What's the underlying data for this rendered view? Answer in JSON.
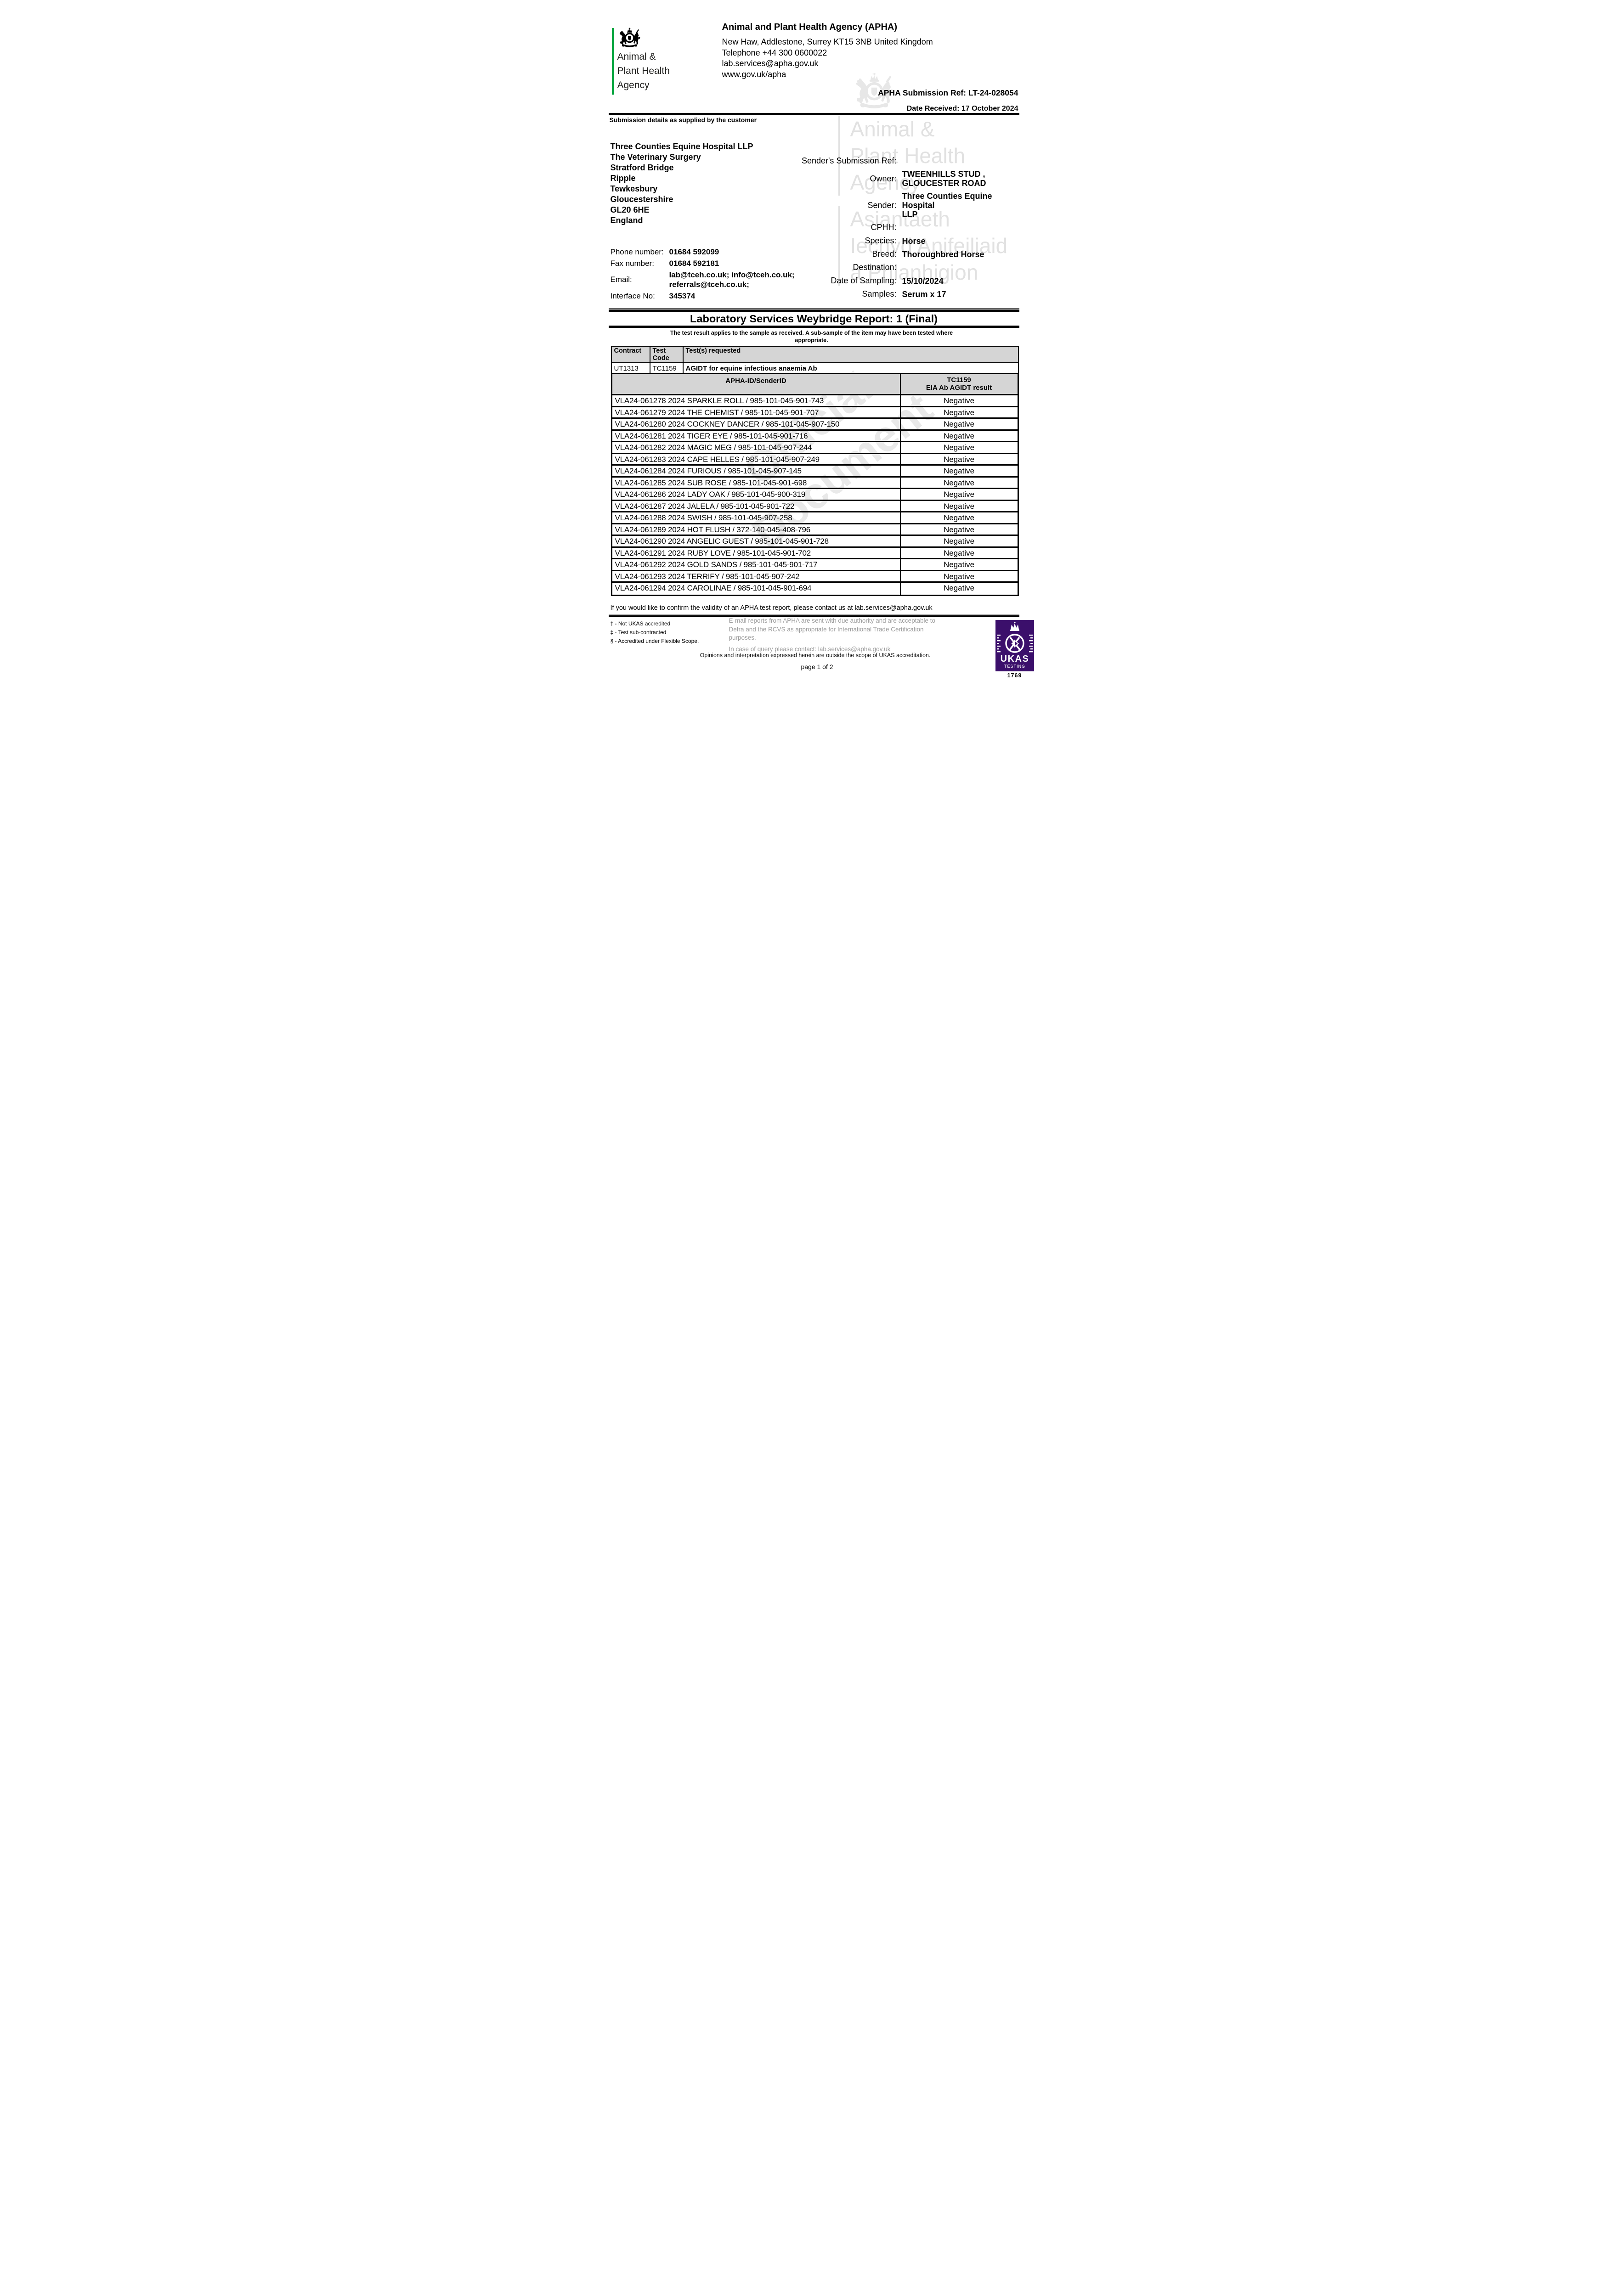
{
  "header": {
    "logo_lines": [
      "Animal &",
      "Plant Health",
      "Agency"
    ],
    "agency_title": "Animal and Plant Health Agency (APHA)",
    "address_line": "New Haw, Addlestone, Surrey KT15 3NB United Kingdom",
    "phone_line": "Telephone +44 300 0600022",
    "email_line": "lab.services@apha.gov.uk",
    "web_line": "www.gov.uk/apha",
    "submission_ref": "APHA Submission Ref: LT-24-028054",
    "date_received": "Date Received: 17 October 2024",
    "brand_green": "#00a33b"
  },
  "watermarks": {
    "diagonal_lines": [
      "Official",
      "Document"
    ],
    "english_lines": [
      "Animal &",
      "Plant Health",
      "Agency"
    ],
    "welsh_lines": [
      "Asiantaeth",
      "Iechyd Anifeiliaid",
      "a Phlanhigion"
    ]
  },
  "submission": {
    "section_title": "Submission details as supplied by the customer",
    "customer_address": [
      "Three Counties Equine Hospital LLP",
      "The Veterinary Surgery",
      "Stratford Bridge",
      "Ripple",
      "Tewkesbury",
      "Gloucestershire",
      "GL20 6HE",
      "England"
    ],
    "fields": [
      {
        "label": "Sender's Submission Ref:",
        "value_lines": []
      },
      {
        "label": "Owner:",
        "value_lines": [
          "TWEENHILLS STUD ,",
          "GLOUCESTER ROAD"
        ]
      },
      {
        "label": "Sender:",
        "value_lines": [
          "Three Counties Equine Hospital",
          "LLP"
        ]
      },
      {
        "label": "CPHH:",
        "value_lines": []
      },
      {
        "label": "Species:",
        "value_lines": [
          "Horse"
        ]
      },
      {
        "label": "Breed:",
        "value_lines": [
          "Thoroughbred Horse"
        ]
      },
      {
        "label": "Destination:",
        "value_lines": []
      },
      {
        "label": "Date of Sampling:",
        "value_lines": [
          "15/10/2024"
        ]
      },
      {
        "label": "Samples:",
        "value_lines": [
          "Serum x 17"
        ]
      }
    ],
    "contact_fields": [
      {
        "label": "Phone number:",
        "value_lines": [
          "01684 592099"
        ]
      },
      {
        "label": "Fax number:",
        "value_lines": [
          "01684 592181"
        ]
      },
      {
        "label": "Email:",
        "value_lines": [
          "lab@tceh.co.uk; info@tceh.co.uk;",
          "referrals@tceh.co.uk;"
        ]
      },
      {
        "label": "Interface No:",
        "value_lines": [
          "345374"
        ]
      }
    ]
  },
  "report": {
    "title": "Laboratory Services Weybridge Report: 1 (Final)",
    "note": "The test result applies to the sample as received. A sub-sample of the item may have been tested where appropriate.",
    "request_table": {
      "headers": [
        "Contract",
        "Test Code",
        "Test(s) requested"
      ],
      "row": {
        "contract": "UT1313",
        "test_code": "TC1159",
        "tests_requested": "AGIDT for equine infectious anaemia Ab"
      }
    },
    "results_table": {
      "col1_header": "APHA-ID/SenderID",
      "col2_header_line1": "TC1159",
      "col2_header_line2": "EIA Ab AGIDT result",
      "rows": [
        {
          "id": "VLA24-061278 2024 SPARKLE ROLL / 985-101-045-901-743",
          "result": "Negative"
        },
        {
          "id": "VLA24-061279 2024 THE CHEMIST / 985-101-045-901-707",
          "result": "Negative"
        },
        {
          "id": "VLA24-061280 2024 COCKNEY DANCER / 985-101-045-907-150",
          "result": "Negative"
        },
        {
          "id": "VLA24-061281 2024 TIGER EYE / 985-101-045-901-716",
          "result": "Negative"
        },
        {
          "id": "VLA24-061282 2024 MAGIC MEG / 985-101-045-907-244",
          "result": "Negative"
        },
        {
          "id": "VLA24-061283 2024 CAPE HELLES / 985-101-045-907-249",
          "result": "Negative"
        },
        {
          "id": "VLA24-061284 2024 FURIOUS / 985-101-045-907-145",
          "result": "Negative"
        },
        {
          "id": "VLA24-061285 2024 SUB ROSE / 985-101-045-901-698",
          "result": "Negative"
        },
        {
          "id": "VLA24-061286 2024 LADY OAK / 985-101-045-900-319",
          "result": "Negative"
        },
        {
          "id": "VLA24-061287 2024 JALELA / 985-101-045-901-722",
          "result": "Negative"
        },
        {
          "id": "VLA24-061288 2024 SWISH / 985-101-045-907-258",
          "result": "Negative"
        },
        {
          "id": "VLA24-061289 2024 HOT FLUSH / 372-140-045-408-796",
          "result": "Negative"
        },
        {
          "id": "VLA24-061290 2024 ANGELIC GUEST / 985-101-045-901-728",
          "result": "Negative"
        },
        {
          "id": "VLA24-061291 2024 RUBY LOVE / 985-101-045-901-702",
          "result": "Negative"
        },
        {
          "id": "VLA24-061292 2024 GOLD SANDS / 985-101-045-901-717",
          "result": "Negative"
        },
        {
          "id": "VLA24-061293 2024 TERRIFY / 985-101-045-907-242",
          "result": "Negative"
        },
        {
          "id": "VLA24-061294 2024 CAROLINAE / 985-101-045-901-694",
          "result": "Negative"
        }
      ]
    },
    "validity_note": "If you would like to confirm the validity of an APHA test report, please contact us at lab.services@apha.gov.uk"
  },
  "footer": {
    "footnotes": [
      "† - Not UKAS accredited",
      "‡ - Test sub-contracted",
      "§ - Accredited under Flexible Scope."
    ],
    "email_notice": "E-mail reports from APHA are sent with due authority and are acceptable to Defra and the RCVS as appropriate for International Trade Certification purposes.",
    "query_contact": "In case of query please contact: lab.services@apha.gov.uk",
    "ukas_disclaimer": "Opinions and interpretation expressed herein are outside the scope of UKAS accreditation.",
    "page_number": "page 1 of 2",
    "ukas": {
      "name": "UKAS",
      "type": "TESTING",
      "number": "1769",
      "color": "#3B0F6B"
    }
  }
}
